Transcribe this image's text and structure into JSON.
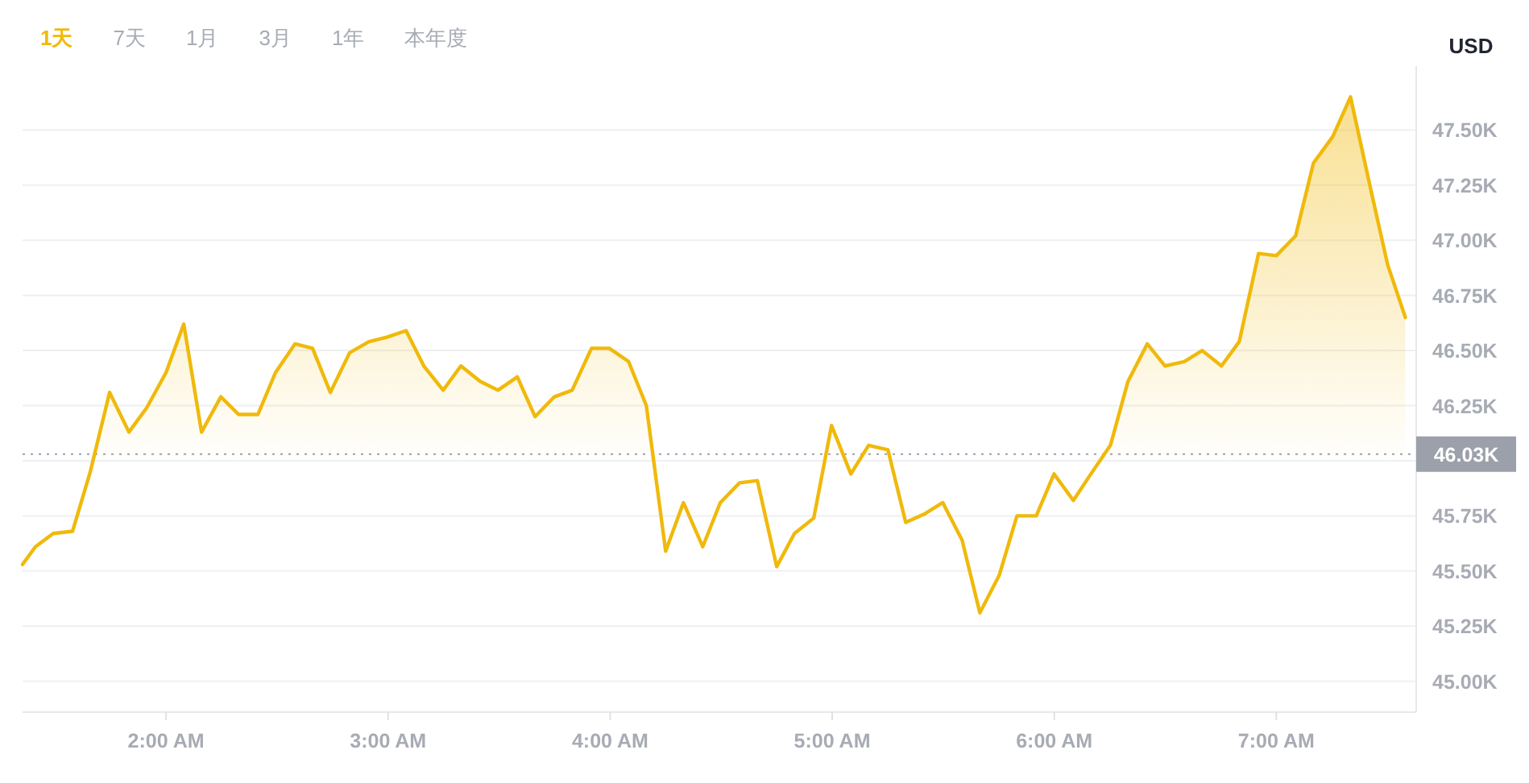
{
  "chart_data": {
    "type": "area",
    "ylabel": "USD",
    "annotations": [
      "1天",
      "7天",
      "1月",
      "3月",
      "1年",
      "本年度"
    ],
    "x": [
      1.354,
      1.412,
      1.492,
      1.579,
      1.659,
      1.746,
      1.833,
      1.913,
      2.0,
      2.08,
      2.16,
      2.247,
      2.327,
      2.414,
      2.493,
      2.581,
      2.66,
      2.74,
      2.827,
      2.914,
      2.994,
      3.081,
      3.161,
      3.248,
      3.328,
      3.415,
      3.495,
      3.582,
      3.662,
      3.749,
      3.829,
      3.916,
      3.996,
      4.083,
      4.163,
      4.25,
      4.33,
      4.417,
      4.496,
      4.583,
      4.663,
      4.75,
      4.83,
      4.917,
      4.997,
      5.084,
      5.164,
      5.251,
      5.331,
      5.418,
      5.498,
      5.585,
      5.665,
      5.752,
      5.832,
      5.919,
      5.999,
      6.086,
      6.165,
      6.253,
      6.332,
      6.419,
      6.499,
      6.586,
      6.666,
      6.753,
      6.833,
      6.92,
      7.0,
      7.087,
      7.167,
      7.254,
      7.334,
      7.421,
      7.501,
      7.581
    ],
    "series": [
      {
        "color": "#f0b90b",
        "values": [
          45530,
          45610,
          45670,
          45680,
          45950,
          46310,
          46130,
          46240,
          46400,
          46620,
          46130,
          46290,
          46210,
          46210,
          46400,
          46530,
          46510,
          46310,
          46490,
          46540,
          46560,
          46590,
          46430,
          46320,
          46430,
          46360,
          46320,
          46380,
          46200,
          46290,
          46320,
          46510,
          46510,
          46450,
          46250,
          45590,
          45810,
          45610,
          45810,
          45900,
          45910,
          45520,
          45670,
          45740,
          46160,
          45940,
          46070,
          46050,
          45720,
          45760,
          45810,
          45640,
          45310,
          45480,
          45750,
          45750,
          45940,
          45820,
          45940,
          46070,
          46360,
          46530,
          46430,
          46450,
          46500,
          46430,
          46540,
          46940,
          46930,
          47020,
          47350,
          47470,
          47650,
          47250,
          46890,
          46650
        ]
      }
    ],
    "xlim": [
      1.354,
      7.63
    ],
    "xticks": [
      {
        "value": 2,
        "label": "2:00 AM"
      },
      {
        "value": 3,
        "label": "3:00 AM"
      },
      {
        "value": 4,
        "label": "4:00 AM"
      },
      {
        "value": 5,
        "label": "5:00 AM"
      },
      {
        "value": 6,
        "label": "6:00 AM"
      },
      {
        "value": 7,
        "label": "7:00 AM"
      }
    ],
    "ylim": [
      44860,
      47790
    ],
    "yticks": [
      {
        "value": 45000,
        "label": "45.00K"
      },
      {
        "value": 45250,
        "label": "45.25K"
      },
      {
        "value": 45500,
        "label": "45.50K"
      },
      {
        "value": 45750,
        "label": "45.75K"
      },
      {
        "value": 46000,
        "label": null
      },
      {
        "value": 46250,
        "label": "46.25K"
      },
      {
        "value": 46500,
        "label": "46.50K"
      },
      {
        "value": 46750,
        "label": "46.75K"
      },
      {
        "value": 47000,
        "label": "47.00K"
      },
      {
        "value": 47250,
        "label": "47.25K"
      },
      {
        "value": 47500,
        "label": "47.50K"
      }
    ],
    "ref_lines": [
      {
        "axis": "y",
        "value": 46030,
        "label": "46.03K",
        "color": "#9ca0aa",
        "line_style": "dotted"
      }
    ],
    "grid": "y"
  }
}
